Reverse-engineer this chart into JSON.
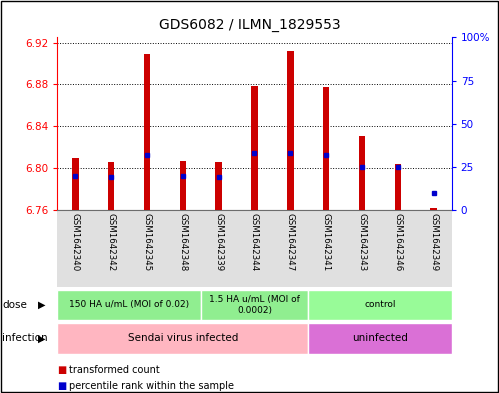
{
  "title": "GDS6082 / ILMN_1829553",
  "samples": [
    "GSM1642340",
    "GSM1642342",
    "GSM1642345",
    "GSM1642348",
    "GSM1642339",
    "GSM1642344",
    "GSM1642347",
    "GSM1642341",
    "GSM1642343",
    "GSM1642346",
    "GSM1642349"
  ],
  "transformed_count": [
    6.81,
    6.806,
    6.909,
    6.807,
    6.806,
    6.879,
    6.912,
    6.878,
    6.831,
    6.804,
    6.762
  ],
  "percentile_rank": [
    20,
    19,
    32,
    20,
    19,
    33,
    33,
    32,
    25,
    25,
    10
  ],
  "ymin": 6.76,
  "ymax": 6.925,
  "yticks_left": [
    6.76,
    6.8,
    6.84,
    6.88,
    6.92
  ],
  "yticks_right": [
    0,
    25,
    50,
    75,
    100
  ],
  "bar_color": "#CC0000",
  "dot_color": "#0000CC",
  "bar_width": 0.18,
  "dose_groups": [
    {
      "label": "150 HA u/mL (MOI of 0.02)",
      "start": 0,
      "end": 3,
      "color": "#90EE90"
    },
    {
      "label": "1.5 HA u/mL (MOI of\n0.0002)",
      "start": 4,
      "end": 6,
      "color": "#90EE90"
    },
    {
      "label": "control",
      "start": 7,
      "end": 10,
      "color": "#98FB98"
    }
  ],
  "infection_groups": [
    {
      "label": "Sendai virus infected",
      "start": 0,
      "end": 6,
      "color": "#FFB6C1"
    },
    {
      "label": "uninfected",
      "start": 7,
      "end": 10,
      "color": "#DA70D6"
    }
  ],
  "legend_items": [
    {
      "label": "transformed count",
      "color": "#CC0000"
    },
    {
      "label": "percentile rank within the sample",
      "color": "#0000CC"
    }
  ]
}
